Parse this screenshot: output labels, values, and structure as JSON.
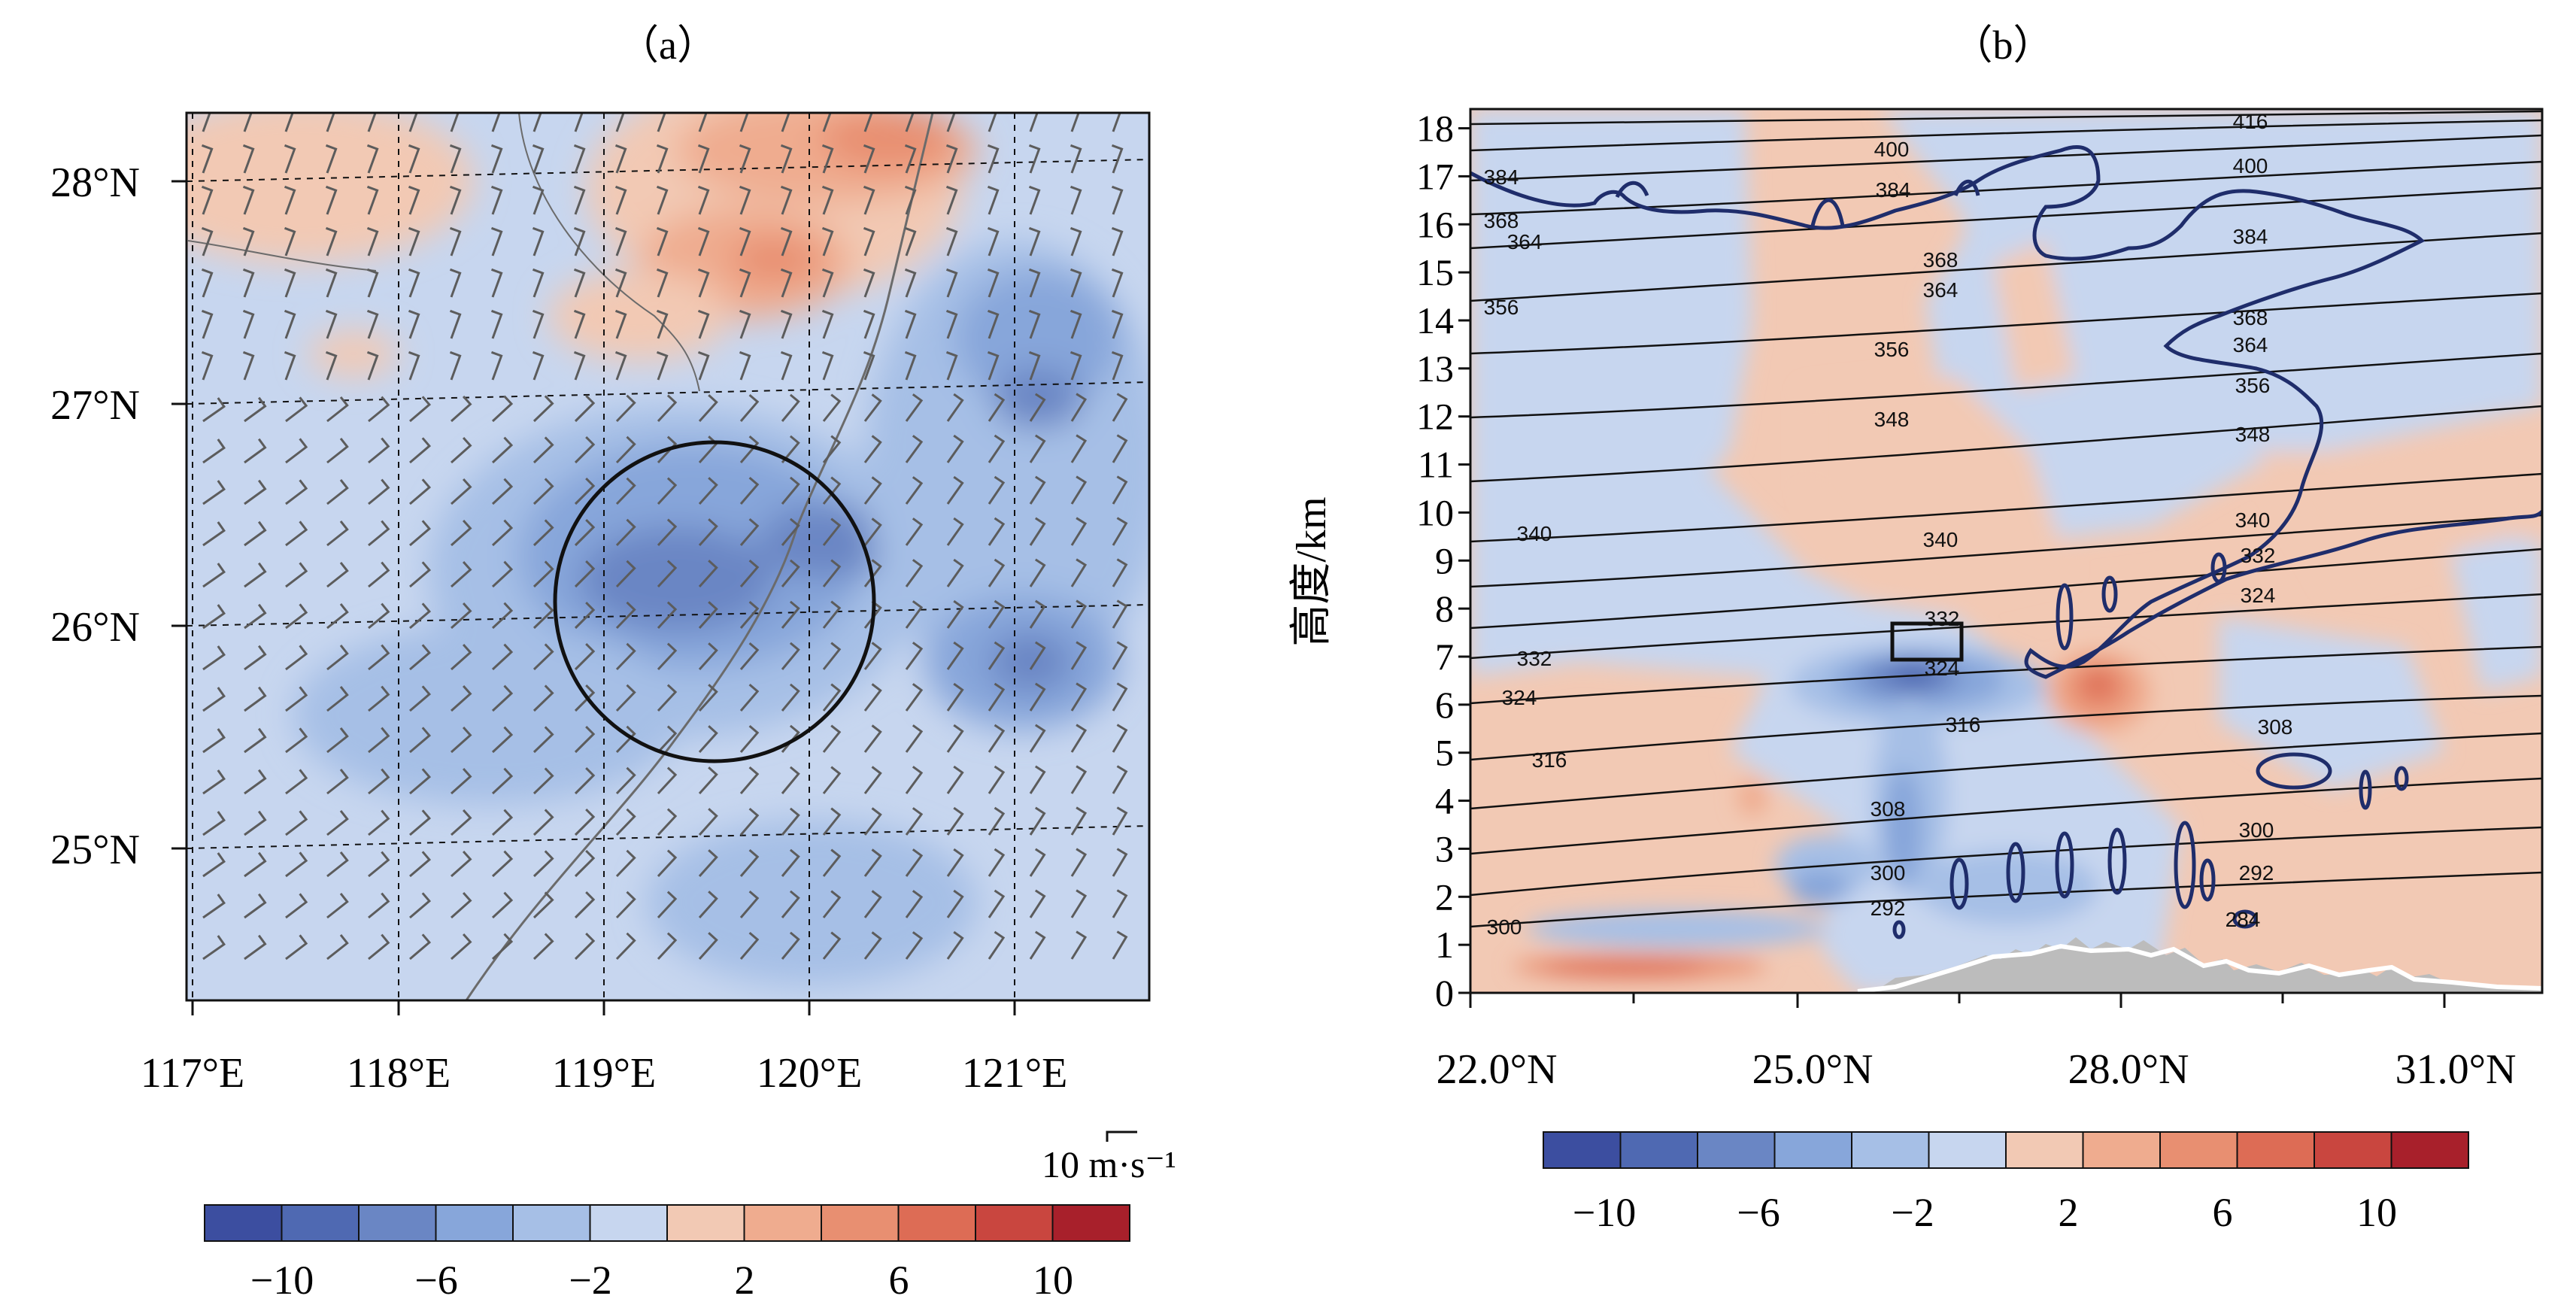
{
  "panel_a": {
    "label": "（a）",
    "x_ticks": [
      "117°E",
      "118°E",
      "119°E",
      "120°E",
      "121°E"
    ],
    "y_ticks": [
      "25°N",
      "26°N",
      "27°N",
      "28°N"
    ],
    "wind_ref_label": "10 m·s⁻¹",
    "colorbar": {
      "tick_labels": [
        "−10",
        "−6",
        "−2",
        "2",
        "6",
        "10"
      ],
      "colors": [
        "#3c4ea0",
        "#4f69b2",
        "#6a86c4",
        "#87a6da",
        "#a6bfe6",
        "#c7d6ef",
        "#f2c9b4",
        "#efac8f",
        "#e88f71",
        "#dd6c55",
        "#c9463f",
        "#a8202b"
      ]
    }
  },
  "panel_b": {
    "label": "（b）",
    "x_ticks": [
      "22.0°N",
      "25.0°N",
      "28.0°N",
      "31.0°N"
    ],
    "y_ticks": [
      "0",
      "1",
      "2",
      "3",
      "4",
      "5",
      "6",
      "7",
      "8",
      "9",
      "10",
      "11",
      "12",
      "13",
      "14",
      "15",
      "16",
      "17",
      "18"
    ],
    "ylabel": "高度/km",
    "contour_labels": [
      "416",
      "400",
      "400",
      "384",
      "384",
      "384",
      "368",
      "368",
      "368",
      "364",
      "364",
      "364",
      "356",
      "356",
      "356",
      "348",
      "348",
      "340",
      "340",
      "340",
      "332",
      "332",
      "332",
      "324",
      "324",
      "324",
      "316",
      "316",
      "308",
      "308",
      "300",
      "300",
      "300",
      "292",
      "292",
      "284"
    ],
    "colorbar": {
      "tick_labels": [
        "−10",
        "−6",
        "−2",
        "2",
        "6",
        "10"
      ],
      "colors": [
        "#3c4ea0",
        "#4f69b2",
        "#6a86c4",
        "#87a6da",
        "#a6bfe6",
        "#c7d6ef",
        "#f2c9b4",
        "#efac8f",
        "#e88f71",
        "#dd6c55",
        "#c9463f",
        "#a8202b"
      ]
    }
  },
  "chart_data": [
    {
      "type": "heatmap",
      "panel": "a",
      "xlim": [
        116.97,
        121.65
      ],
      "ylim": [
        24.28,
        28.3
      ],
      "x_ticks": [
        117,
        118,
        119,
        120,
        121
      ],
      "y_ticks": [
        25,
        26,
        27,
        28
      ],
      "grid": true,
      "colorbar_levels": [
        -12,
        -10,
        -8,
        -6,
        -4,
        -2,
        0,
        2,
        4,
        6,
        8,
        10,
        12
      ],
      "circle": {
        "center_lon": 119.48,
        "center_lat": 26.21,
        "radius_lon": 0.77,
        "radius_lat": 0.72
      }
    },
    {
      "type": "heatmap",
      "panel": "b",
      "xlim": [
        22.0,
        32.0
      ],
      "ylim": [
        0,
        18.4
      ],
      "x_ticks": [
        22.0,
        25.0,
        28.0,
        31.0
      ],
      "y_ticks": [
        0,
        1,
        2,
        3,
        4,
        5,
        6,
        7,
        8,
        9,
        10,
        11,
        12,
        13,
        14,
        15,
        16,
        17,
        18
      ],
      "contour_levels": [
        284,
        292,
        300,
        308,
        316,
        324,
        332,
        340,
        348,
        356,
        364,
        368,
        384,
        400,
        416
      ],
      "box": {
        "x": [
          25.8,
          26.5
        ],
        "y": [
          7.0,
          7.75
        ]
      },
      "colorbar_levels": [
        -12,
        -10,
        -8,
        -6,
        -4,
        -2,
        0,
        2,
        4,
        6,
        8,
        10,
        12
      ]
    }
  ]
}
